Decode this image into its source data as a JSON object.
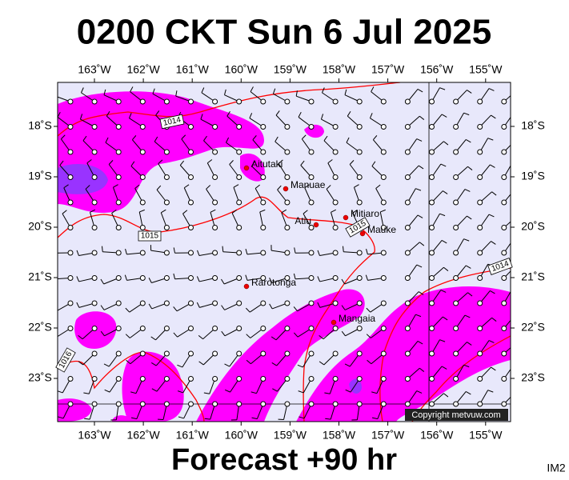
{
  "header": {
    "title": "0200 CKT Sun 6 Jul 2025"
  },
  "map": {
    "longitude_labels": [
      "163˚W",
      "162˚W",
      "161˚W",
      "160˚W",
      "159˚W",
      "158˚W",
      "157˚W",
      "156˚W",
      "155˚W"
    ],
    "latitude_labels": [
      "18˚S",
      "19˚S",
      "20˚S",
      "21˚S",
      "22˚S",
      "23˚S"
    ],
    "places": [
      {
        "name": "Aitutaki"
      },
      {
        "name": "Manuae"
      },
      {
        "name": "Atiu"
      },
      {
        "name": "Mitiaro"
      },
      {
        "name": "Mauke"
      },
      {
        "name": "Rarotonga"
      },
      {
        "name": "Mangaia"
      }
    ],
    "isobar_labels": [
      "1014",
      "1015",
      "1015",
      "1014",
      "1016"
    ],
    "copyright": "Copyright metvuw.com"
  },
  "footer": {
    "forecast": "Forecast +90 hr",
    "image_id": "IM2"
  }
}
